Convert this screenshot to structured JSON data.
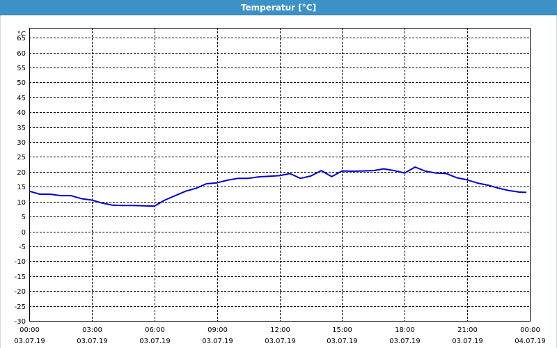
{
  "window": {
    "title": "Temperatur [°C]"
  },
  "colors": {
    "titlebar": "#3c92c6",
    "series": "#0000cc",
    "grid": "#000000"
  },
  "chart_data": {
    "type": "line",
    "title": "Temperatur [°C]",
    "ylabel": "°C",
    "xlabel": "",
    "ylim": [
      -30,
      70
    ],
    "yticks": [
      65,
      60,
      55,
      50,
      45,
      40,
      35,
      30,
      25,
      20,
      15,
      10,
      5,
      0,
      -5,
      -10,
      -15,
      -20,
      -25,
      -30
    ],
    "xlim": [
      "2019-07-03T00:00",
      "2019-07-04T00:00"
    ],
    "xticks": [
      {
        "time": "00:00",
        "date": "03.07.19"
      },
      {
        "time": "03:00",
        "date": "03.07.19"
      },
      {
        "time": "06:00",
        "date": "03.07.19"
      },
      {
        "time": "09:00",
        "date": "03.07.19"
      },
      {
        "time": "12:00",
        "date": "03.07.19"
      },
      {
        "time": "15:00",
        "date": "03.07.19"
      },
      {
        "time": "18:00",
        "date": "03.07.19"
      },
      {
        "time": "21:00",
        "date": "03.07.19"
      },
      {
        "time": "00:00",
        "date": "04.07.19"
      }
    ],
    "grid": true,
    "series": [
      {
        "x": [
          "00:00",
          "00:30",
          "01:00",
          "01:30",
          "02:00",
          "02:30",
          "03:00",
          "03:30",
          "04:00",
          "04:30",
          "05:00",
          "05:30",
          "06:00",
          "06:30",
          "07:00",
          "07:30",
          "08:00",
          "08:30",
          "09:00",
          "09:30",
          "10:00",
          "10:30",
          "11:00",
          "11:30",
          "12:00",
          "12:30",
          "13:00",
          "13:30",
          "14:00",
          "14:30",
          "15:00",
          "15:30",
          "16:00",
          "16:30",
          "17:00",
          "17:30",
          "18:00",
          "18:30",
          "19:00",
          "19:30",
          "20:00",
          "20:30",
          "21:00",
          "21:30",
          "22:00",
          "22:30",
          "23:00",
          "23:30",
          "23:50"
        ],
        "y": [
          13.5,
          12.5,
          12.5,
          12,
          12,
          11,
          10.5,
          9.5,
          8.8,
          8.7,
          8.7,
          8.6,
          8.5,
          10.5,
          12,
          13.5,
          14.5,
          16,
          16.3,
          17.2,
          17.8,
          17.8,
          18.3,
          18.5,
          18.7,
          19.4,
          17.8,
          18.6,
          20.4,
          18.4,
          20.3,
          20.2,
          20.3,
          20.4,
          21,
          20.4,
          19.6,
          21.6,
          20.2,
          19.6,
          19.4,
          18,
          17.3,
          16.2,
          15.5,
          14.5,
          13.7,
          13.2,
          13.1
        ]
      }
    ]
  }
}
